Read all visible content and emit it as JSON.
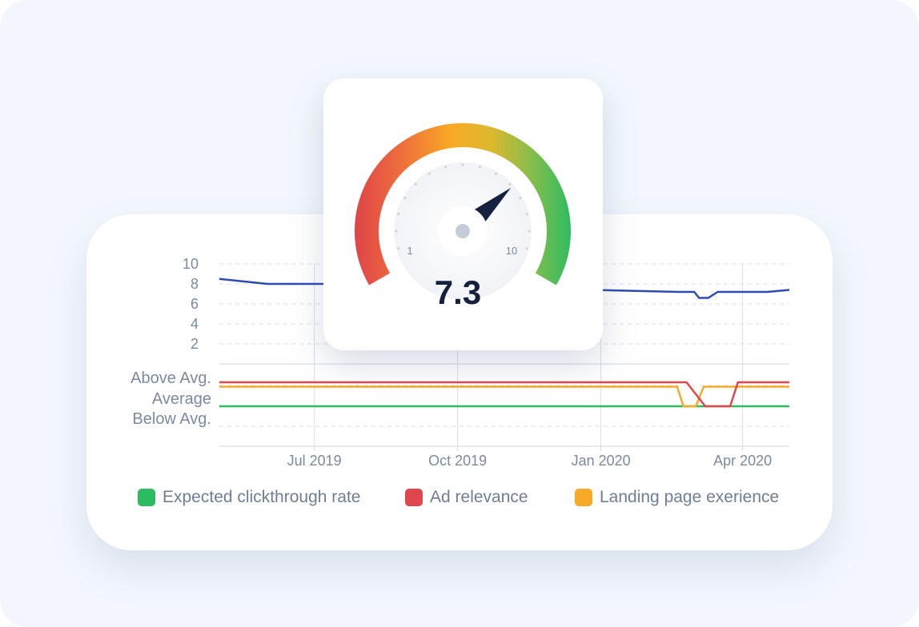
{
  "gauge": {
    "value": 7.3,
    "value_label": "7.3",
    "min_label": "1",
    "max_label": "10",
    "min": 1,
    "max": 10
  },
  "chart_data": [
    {
      "type": "line",
      "y_ticks": [
        "10",
        "8",
        "6",
        "4",
        "2"
      ],
      "ylim": [
        0,
        10
      ],
      "xlim": [
        "2019-05-01",
        "2020-05-01"
      ],
      "grid": true,
      "series": [
        {
          "color": "#2e4bb0",
          "points": [
            [
              "2019-05-01",
              8.5
            ],
            [
              "2019-06-01",
              8.0
            ],
            [
              "2019-07-15",
              8.0
            ],
            [
              "2020-02-20",
              7.2
            ],
            [
              "2020-03-01",
              7.2
            ],
            [
              "2020-03-04",
              6.6
            ],
            [
              "2020-03-10",
              6.6
            ],
            [
              "2020-03-16",
              7.2
            ],
            [
              "2020-04-17",
              7.2
            ],
            [
              "2020-05-01",
              7.4
            ]
          ]
        }
      ]
    },
    {
      "type": "line",
      "y_categories": [
        "Above Avg.",
        "Average",
        "Below Avg."
      ],
      "x_ticks": [
        "Jul 2019",
        "Oct 2019",
        "Jan 2020",
        "Apr 2020"
      ],
      "xlim": [
        "2019-05-01",
        "2020-05-01"
      ],
      "grid": true,
      "legend_position": "bottom",
      "series": [
        {
          "name": "Expected clickthrough rate",
          "color": "#2dbb62",
          "points": [
            [
              "2019-05-01",
              "Average"
            ],
            [
              "2020-05-01",
              "Average"
            ]
          ]
        },
        {
          "name": "Ad relevance",
          "color": "#e0474c",
          "points": [
            [
              "2019-05-01",
              "Above Avg."
            ],
            [
              "2020-02-25",
              "Above Avg."
            ],
            [
              "2020-03-08",
              "Average"
            ],
            [
              "2020-03-24",
              "Average"
            ],
            [
              "2020-03-29",
              "Above Avg."
            ],
            [
              "2020-05-01",
              "Above Avg."
            ]
          ]
        },
        {
          "name": "Landing page exerience",
          "color": "#f7a928",
          "points": [
            [
              "2019-05-01",
              "Above Avg."
            ],
            [
              "2020-02-19",
              "Above Avg."
            ],
            [
              "2020-02-23",
              "Average"
            ],
            [
              "2020-03-02",
              "Average"
            ],
            [
              "2020-03-07",
              "Above Avg."
            ],
            [
              "2020-03-29",
              "Above Avg."
            ],
            [
              "2020-05-01",
              "Above Avg."
            ]
          ]
        }
      ]
    }
  ]
}
